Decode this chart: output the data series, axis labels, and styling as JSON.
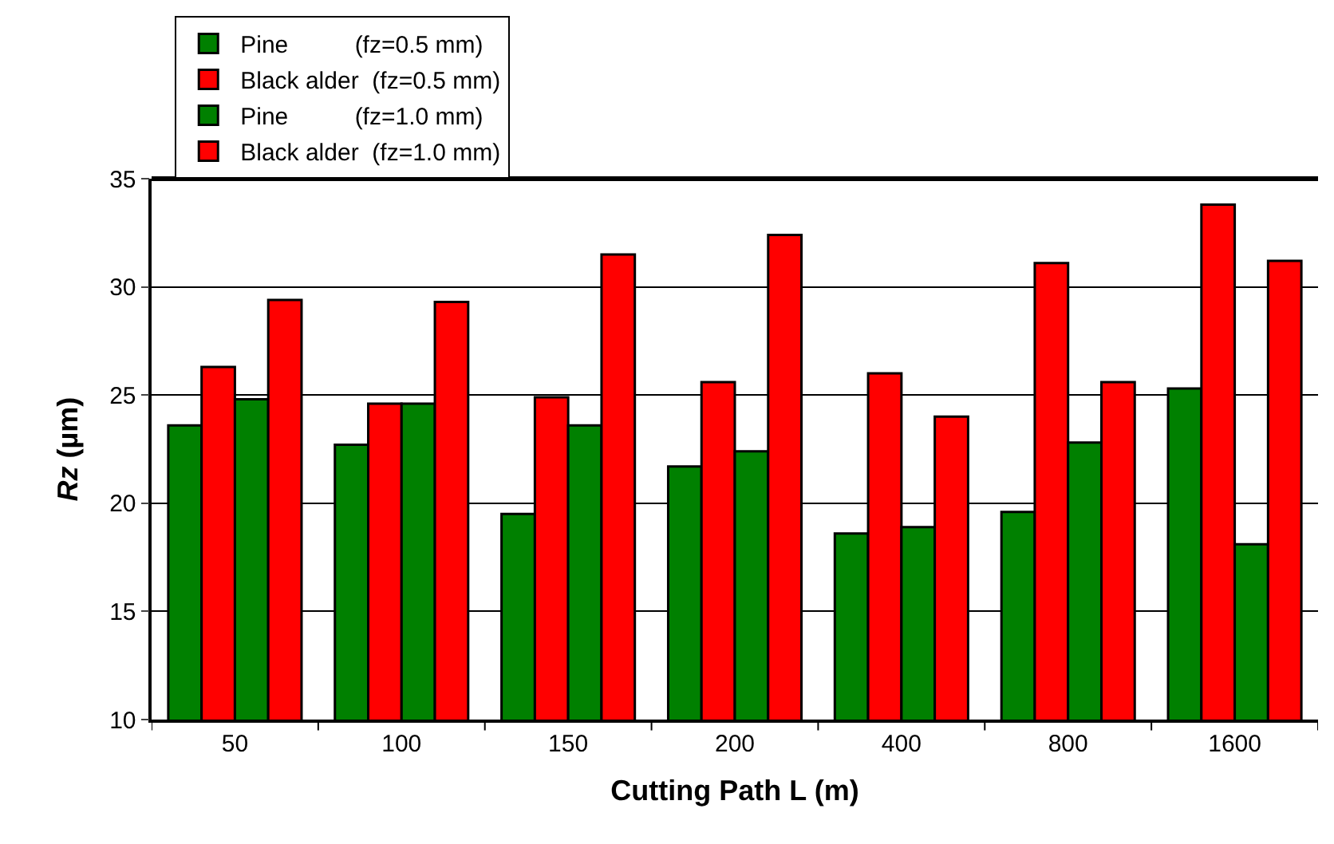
{
  "chart_data": {
    "type": "bar",
    "xlabel": "Cutting Path L (m)",
    "ylabel": "Rz (µm)",
    "categories": [
      "50",
      "100",
      "150",
      "200",
      "400",
      "800",
      "1600"
    ],
    "series": [
      {
        "name": "Pine          (fz=0.5 mm)",
        "color": "#008000",
        "values": [
          23.6,
          22.7,
          19.5,
          21.7,
          18.6,
          19.6,
          25.3
        ]
      },
      {
        "name": "Black alder  (fz=0.5 mm)",
        "color": "#ff0000",
        "values": [
          26.3,
          24.6,
          24.9,
          25.6,
          26.0,
          31.1,
          33.8
        ]
      },
      {
        "name": "Pine          (fz=1.0 mm)",
        "color": "#008000",
        "values": [
          24.8,
          24.6,
          23.6,
          22.4,
          18.9,
          22.8,
          18.1
        ]
      },
      {
        "name": "Black alder  (fz=1.0 mm)",
        "color": "#ff0000",
        "values": [
          29.4,
          29.3,
          31.5,
          32.4,
          24.0,
          25.6,
          31.2
        ]
      }
    ],
    "ylim": [
      10,
      35
    ],
    "yticks": [
      10,
      15,
      20,
      25,
      30,
      35
    ],
    "grid": "y",
    "legend": "top left"
  }
}
